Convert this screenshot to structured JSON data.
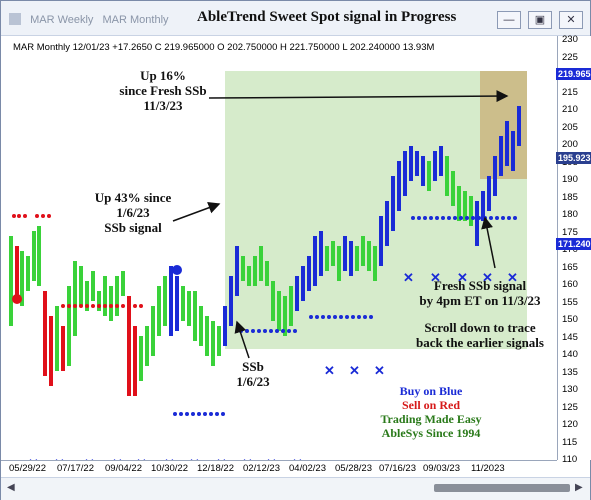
{
  "window": {
    "tabs": [
      "MAR  Weekly",
      "MAR  Monthly"
    ],
    "title": "AbleTrend Sweet Spot signal in Progress",
    "buttons": [
      "—",
      "▣",
      "✕"
    ]
  },
  "info_line": "MAR  Monthly 12/01/23 +17.2650 C 219.965000 O 202.750000 H 221.750000 L 202.240000 13.93M",
  "yaxis_ticks": [
    "230",
    "225",
    "220",
    "215",
    "210",
    "205",
    "200",
    "195",
    "190",
    "185",
    "180",
    "175",
    "170",
    "165",
    "160",
    "155",
    "150",
    "145",
    "140",
    "135",
    "130",
    "125",
    "120",
    "115",
    "110"
  ],
  "price_tags": [
    {
      "label": "219.965",
      "color": "#1a2bd6"
    },
    {
      "label": "195.923",
      "color": "#2a3f8f"
    },
    {
      "label": "171.240",
      "color": "#1a2bd6"
    }
  ],
  "xaxis_labels": [
    "05/29/22",
    "07/17/22",
    "09/04/22",
    "10/30/22",
    "12/18/22",
    "02/12/23",
    "04/02/23",
    "05/28/23",
    "07/16/23",
    "09/03/23",
    "11/2023"
  ],
  "annotations": {
    "up16": [
      "Up 16%",
      "since Fresh SSb",
      "11/3/23"
    ],
    "up43": [
      "Up 43% since",
      "1/6/23",
      "SSb signal"
    ],
    "ssb": [
      "SSb",
      "1/6/23"
    ],
    "fresh": [
      "Fresh SSb signal",
      "by 4pm ET on 11/3/23"
    ],
    "scroll": [
      "Scroll down to trace",
      "back the earlier signals"
    ]
  },
  "legend": [
    {
      "text": "Buy on Blue",
      "color": "#1a2bd6"
    },
    {
      "text": "Sell on Red",
      "color": "#d61a1a"
    },
    {
      "text": "Trading Made Easy",
      "color": "#2a7a1a"
    },
    {
      "text": "AbleSys Since 1994",
      "color": "#2a7a1a"
    }
  ]
}
